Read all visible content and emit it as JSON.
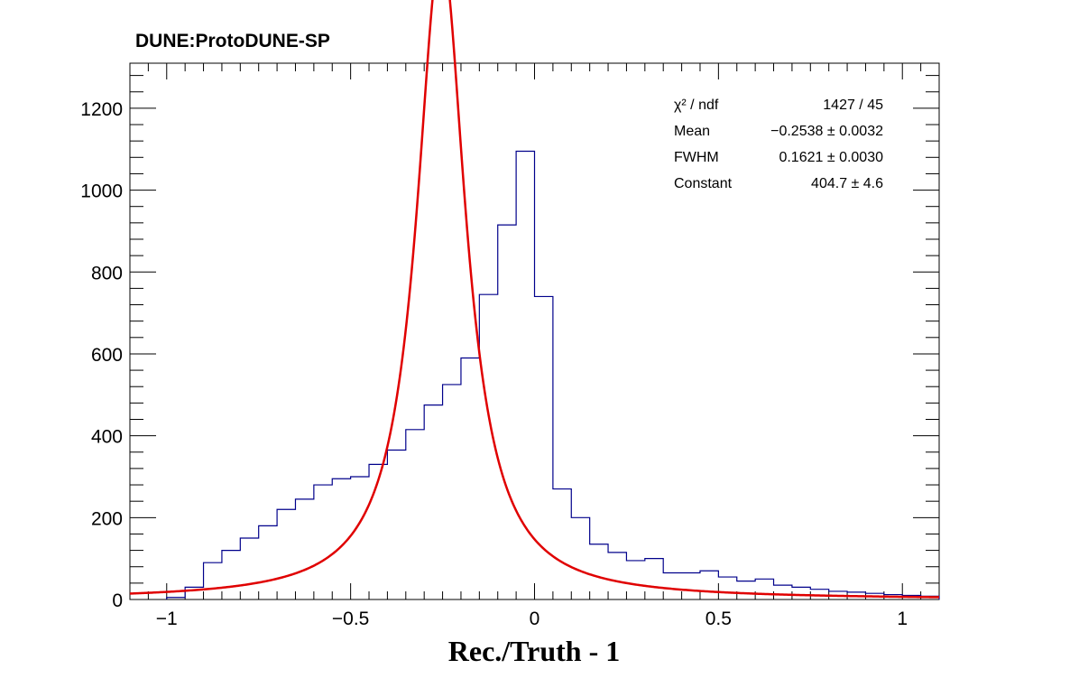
{
  "header": {
    "experiment_label": "DUNE:ProtoDUNE-SP"
  },
  "stats": [
    {
      "name": "χ² / ndf",
      "value": "1427 / 45"
    },
    {
      "name": "Mean",
      "value": "−0.2538 ± 0.0032"
    },
    {
      "name": "FWHM",
      "value": "0.1621 ± 0.0030"
    },
    {
      "name": "Constant",
      "value": "404.7 ± 4.6"
    }
  ],
  "colors": {
    "histogram": "#00008b",
    "fit": "#e00000",
    "axes": "#000000"
  },
  "chart_data": {
    "type": "line",
    "title": "",
    "xlabel": "Rec./Truth - 1",
    "ylabel": "",
    "xlim": [
      -1.1,
      1.1
    ],
    "ylim": [
      0,
      1310
    ],
    "x_ticks": [
      -1,
      -0.5,
      0,
      0.5,
      1
    ],
    "x_tick_labels": [
      "−1",
      "−0.5",
      "0",
      "0.5",
      "1"
    ],
    "y_ticks": [
      0,
      200,
      400,
      600,
      800,
      1000,
      1200
    ],
    "y_tick_labels": [
      "0",
      "200",
      "400",
      "600",
      "800",
      "1000",
      "1200"
    ],
    "series": [
      {
        "style": "step-histogram",
        "bin_edges": [
          -1.0,
          -0.95,
          -0.9,
          -0.85,
          -0.8,
          -0.75,
          -0.7,
          -0.65,
          -0.6,
          -0.55,
          -0.5,
          -0.45,
          -0.4,
          -0.35,
          -0.3,
          -0.25,
          -0.2,
          -0.15,
          -0.1,
          -0.05,
          0.0,
          0.05,
          0.1,
          0.15,
          0.2,
          0.25,
          0.3,
          0.35,
          0.4,
          0.45,
          0.5,
          0.55,
          0.6,
          0.65,
          0.7,
          0.75,
          0.8,
          0.85,
          0.9,
          0.95,
          1.0,
          1.05,
          1.1
        ],
        "values": [
          5,
          30,
          90,
          120,
          150,
          180,
          220,
          245,
          280,
          295,
          300,
          330,
          365,
          415,
          475,
          525,
          590,
          745,
          915,
          1095,
          740,
          270,
          200,
          135,
          115,
          95,
          100,
          65,
          65,
          70,
          55,
          45,
          50,
          35,
          30,
          25,
          20,
          18,
          15,
          12,
          10,
          8
        ]
      },
      {
        "style": "fit-curve",
        "function": "Breit-Wigner",
        "mean": -0.2538,
        "fwhm": 0.1621,
        "constant": 404.7
      }
    ]
  }
}
